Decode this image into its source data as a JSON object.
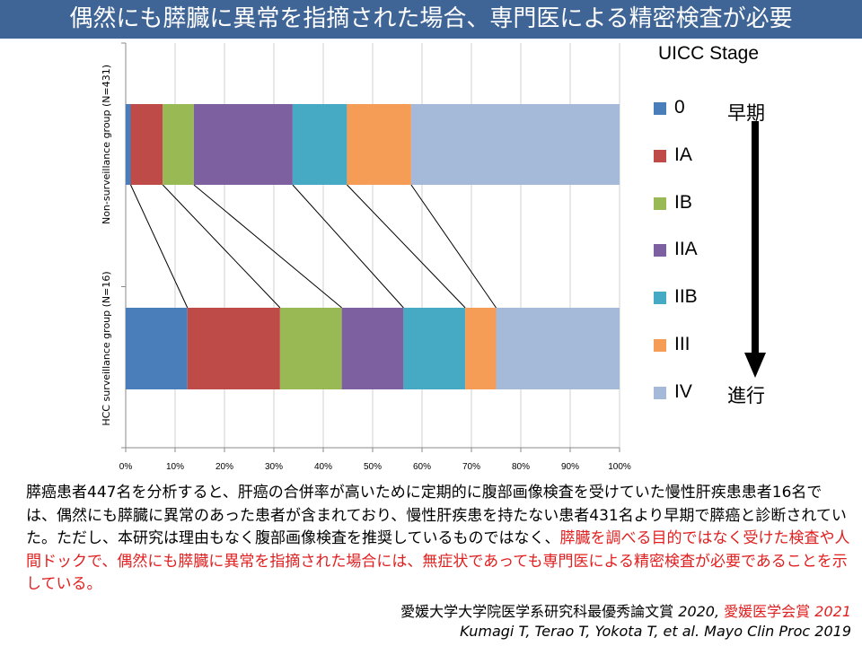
{
  "title": "偶然にも膵臓に異常を指摘された場合、専門医による精密検査が必要",
  "chart_data": {
    "type": "bar",
    "orientation": "horizontal",
    "stacked": true,
    "normalized_percent": true,
    "categories": [
      "Non-surveillance group (N=431)",
      "HCC surveillance group (N=16)"
    ],
    "legend_title": "UICC Stage",
    "series": [
      {
        "name": "0",
        "color": "#4a7ebb",
        "values": [
          1.0,
          12.5
        ]
      },
      {
        "name": "IA",
        "color": "#be4b48",
        "values": [
          6.5,
          18.75
        ]
      },
      {
        "name": "IB",
        "color": "#98b954",
        "values": [
          6.3,
          12.5
        ]
      },
      {
        "name": "IIA",
        "color": "#7d60a0",
        "values": [
          20.0,
          12.5
        ]
      },
      {
        "name": "IIB",
        "color": "#46aac5",
        "values": [
          11.0,
          12.5
        ]
      },
      {
        "name": "III",
        "color": "#f59d56",
        "values": [
          13.0,
          6.25
        ]
      },
      {
        "name": "IV",
        "color": "#a5b9d9",
        "values": [
          42.2,
          25.0
        ]
      }
    ],
    "xlim": [
      0,
      100
    ],
    "x_ticks": [
      "0%",
      "10%",
      "20%",
      "30%",
      "40%",
      "50%",
      "60%",
      "70%",
      "80%",
      "90%",
      "100%"
    ],
    "grid": true,
    "connector_lines": true
  },
  "legend": {
    "early_label": "早期",
    "advanced_label": "進行"
  },
  "description": {
    "black": "膵癌患者447名を分析すると、肝癌の合併率が高いために定期的に腹部画像検査を受けていた慢性肝疾患患者16名では、偶然にも膵臓に異常のあった患者が含まれており、慢性肝疾患を持たない患者431名より早期で膵癌と診断されていた。ただし、本研究は理由もなく腹部画像検査を推奨しているものではなく、",
    "red": "膵臓を調べる目的ではなく受けた検査や人間ドックで、偶然にも膵臓に異常を指摘された場合には、無症状であっても専門医による精密検査が必要であることを示している。"
  },
  "citation": {
    "award1": "愛媛大学大学院医学系研究科最優秀論文賞",
    "award1_year": "2020",
    "sep": ",",
    "award2": "愛媛医学会賞",
    "award2_year": "2021",
    "reference": "Kumagi T, Terao T, Yokota T, et al. Mayo Clin Proc 2019"
  }
}
